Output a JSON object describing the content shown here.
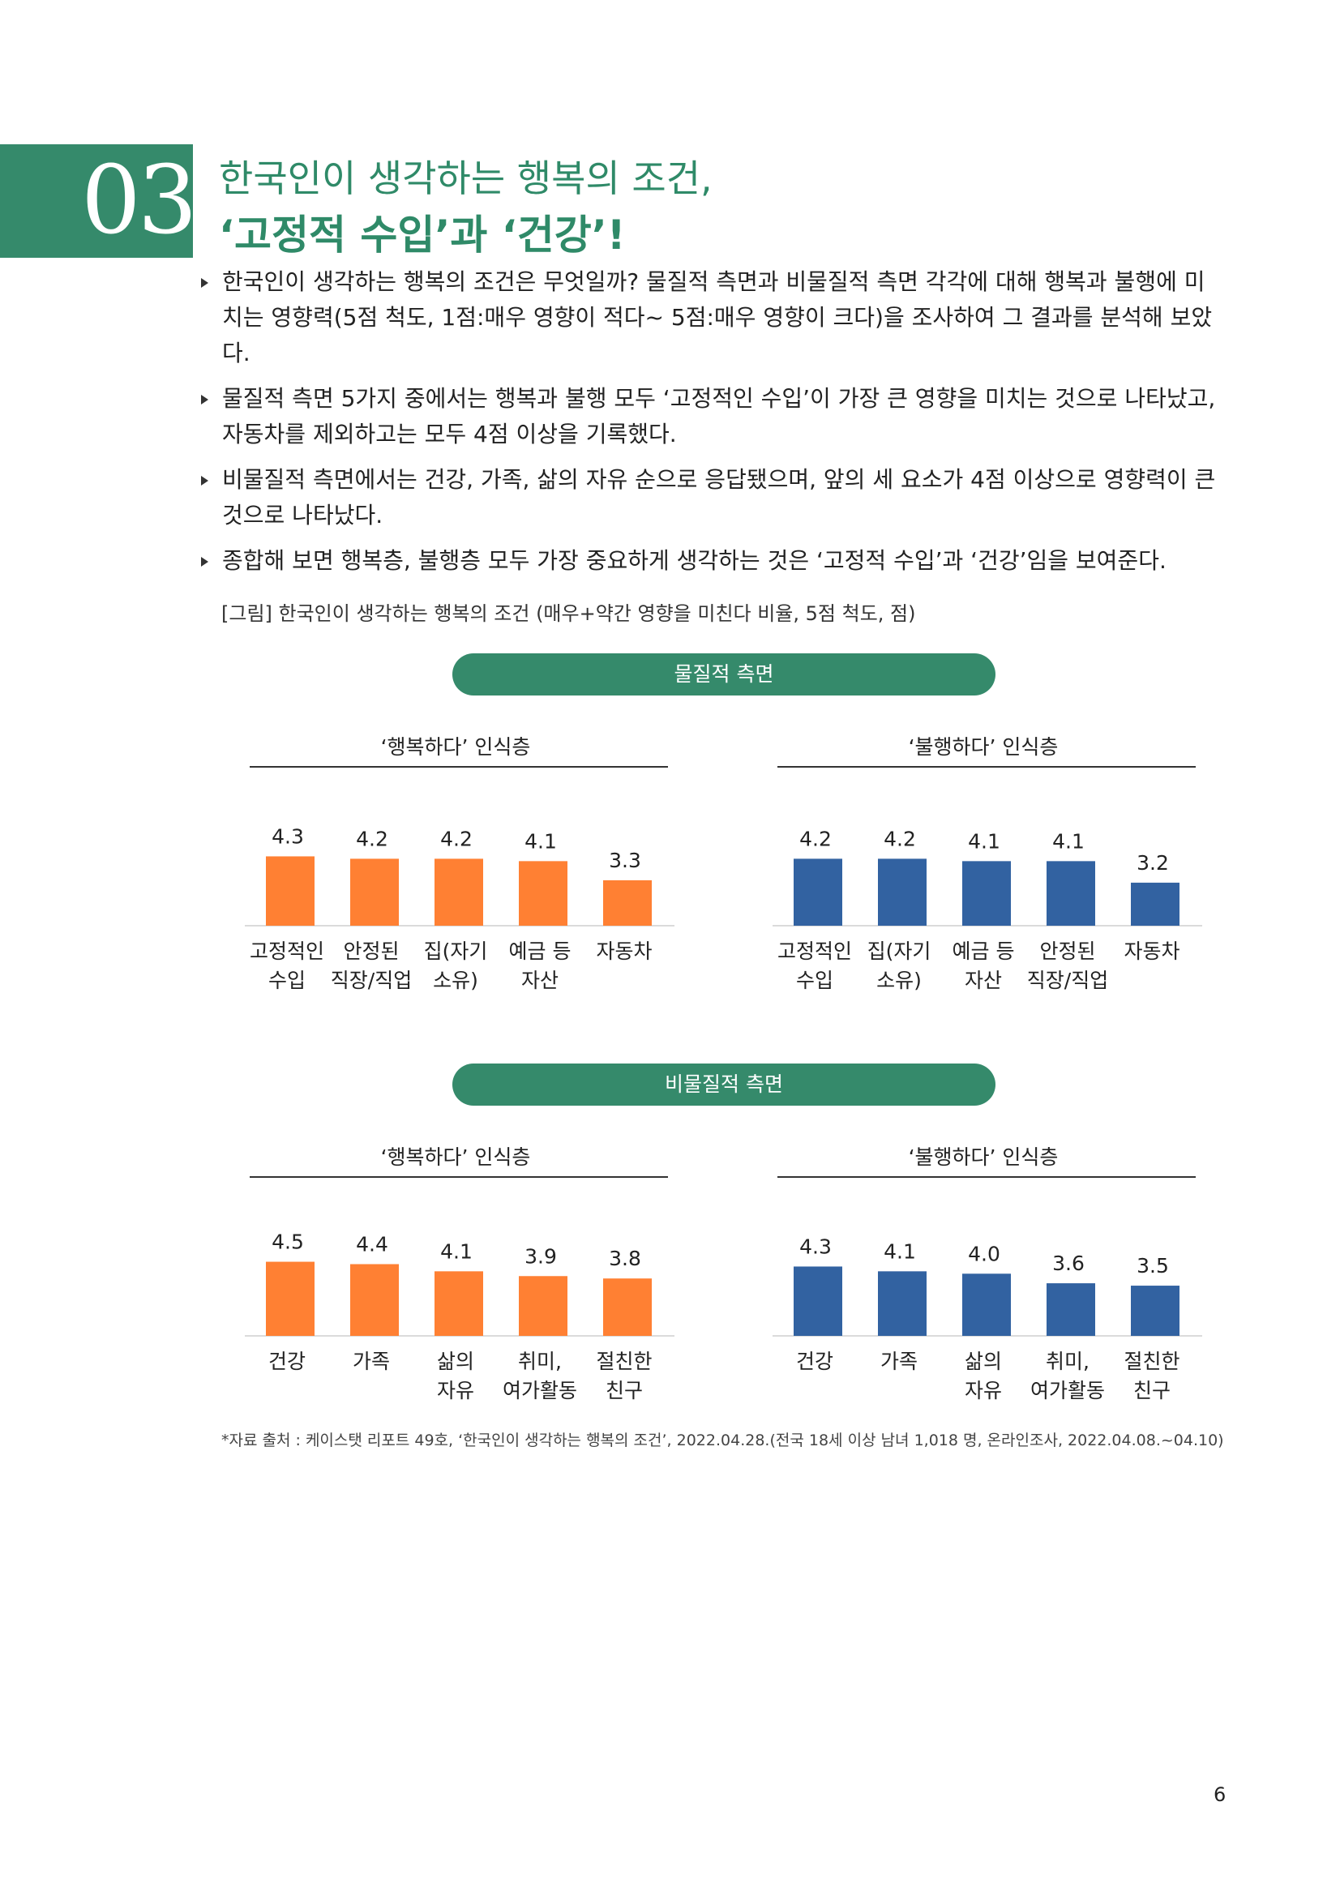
{
  "section": {
    "number": "03",
    "title_line1": "한국인이 생각하는 행복의 조건,",
    "title_line2": "‘고정적 수입’과 ‘건강’!"
  },
  "bullets": [
    "한국인이 생각하는 행복의 조건은 무엇일까? 물질적 측면과 비물질적 측면 각각에 대해 행복과 불행에 미치는 영향력(5점 척도, 1점:매우 영향이 적다~ 5점:매우 영향이 크다)을 조사하여 그 결과를 분석해 보았다.",
    "물질적 측면 5가지 중에서는 행복과 불행 모두 ‘고정적인 수입’이 가장 큰 영향을 미치는 것으로 나타났고, 자동차를 제외하고는 모두 4점 이상을 기록했다.",
    "비물질적 측면에서는 건강, 가족, 삶의 자유 순으로 응답됐으며, 앞의 세 요소가 4점 이상으로 영향력이 큰 것으로 나타났다.",
    "종합해 보면 행복층, 불행층 모두 가장 중요하게 생각하는 것은 ‘고정적 수입’과 ‘건강’임을 보여준다."
  ],
  "figure_caption": "[그림] 한국인이 생각하는 행복의 조건 (매우+약간 영향을 미친다 비율, 5점 척도, 점)",
  "pills": {
    "material": "물질적 측면",
    "nonmaterial": "비물질적 측면"
  },
  "colors": {
    "green": "#358a6b",
    "happy_bar": "#ff8033",
    "unhappy_bar": "#3262a1"
  },
  "chart_data": [
    {
      "type": "bar",
      "group": "물질적 측면",
      "title": "‘행복하다’ 인식층",
      "categories": [
        [
          "고정적인",
          "수입"
        ],
        [
          "안정된",
          "직장/직업"
        ],
        [
          "집(자기",
          "소유)"
        ],
        [
          "예금 등",
          "자산"
        ],
        [
          "자동차"
        ]
      ],
      "values": [
        4.3,
        4.2,
        4.2,
        4.1,
        3.3
      ],
      "color": "#ff8033"
    },
    {
      "type": "bar",
      "group": "물질적 측면",
      "title": "‘불행하다’ 인식층",
      "categories": [
        [
          "고정적인",
          "수입"
        ],
        [
          "집(자기",
          "소유)"
        ],
        [
          "예금 등",
          "자산"
        ],
        [
          "안정된",
          "직장/직업"
        ],
        [
          "자동차"
        ]
      ],
      "values": [
        4.2,
        4.2,
        4.1,
        4.1,
        3.2
      ],
      "color": "#3262a1"
    },
    {
      "type": "bar",
      "group": "비물질적 측면",
      "title": "‘행복하다’ 인식층",
      "categories": [
        [
          "건강"
        ],
        [
          "가족"
        ],
        [
          "삶의",
          "자유"
        ],
        [
          "취미,",
          "여가활동"
        ],
        [
          "절친한",
          "친구"
        ]
      ],
      "values": [
        4.5,
        4.4,
        4.1,
        3.9,
        3.8
      ],
      "color": "#ff8033"
    },
    {
      "type": "bar",
      "group": "비물질적 측면",
      "title": "‘불행하다’ 인식층",
      "categories": [
        [
          "건강"
        ],
        [
          "가족"
        ],
        [
          "삶의",
          "자유"
        ],
        [
          "취미,",
          "여가활동"
        ],
        [
          "절친한",
          "친구"
        ]
      ],
      "values": [
        4.3,
        4.1,
        4.0,
        3.6,
        3.5
      ],
      "color": "#3262a1"
    }
  ],
  "source": "*자료 출처 : 케이스탯 리포트 49호, ‘한국인이 생각하는 행복의 조건’, 2022.04.28.(전국 18세 이상 남녀 1,018 명, 온라인조사, 2022.04.08.~04.10)",
  "page_number": "6"
}
